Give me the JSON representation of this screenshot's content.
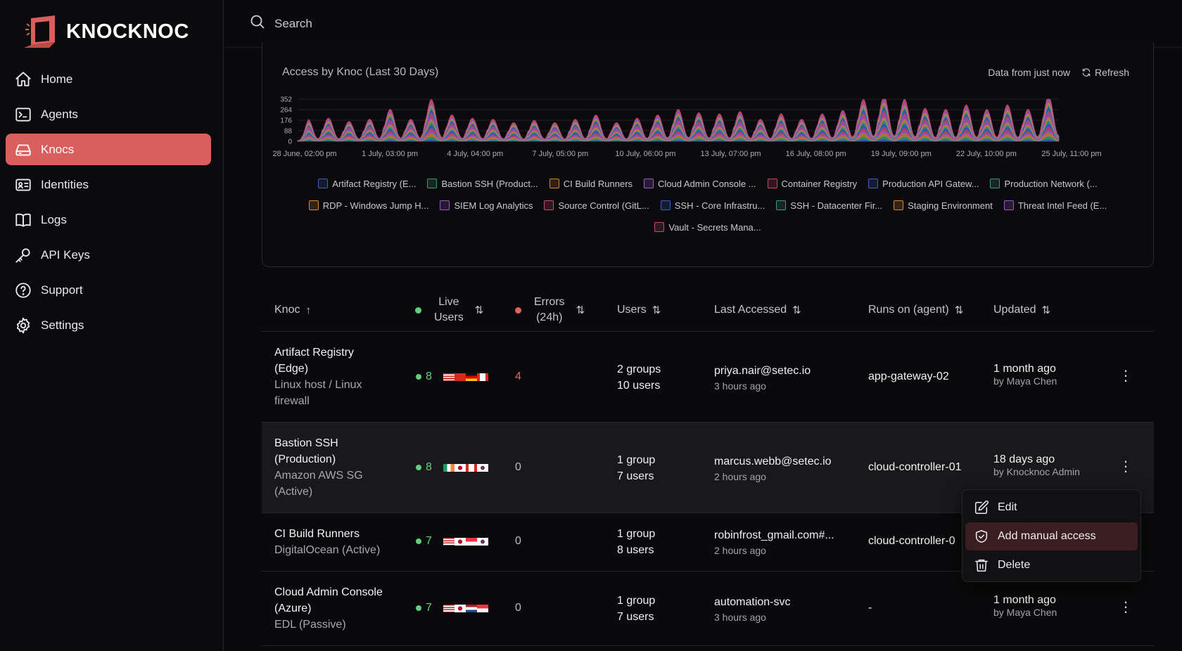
{
  "app": {
    "name": "KNOCKNOC",
    "brand_color": "#d95f5e"
  },
  "sidebar": {
    "items": [
      {
        "label": "Home",
        "icon": "home-icon"
      },
      {
        "label": "Agents",
        "icon": "terminal-icon"
      },
      {
        "label": "Knocs",
        "icon": "drive-icon",
        "active": true
      },
      {
        "label": "Identities",
        "icon": "id-card-icon"
      },
      {
        "label": "Logs",
        "icon": "book-icon"
      },
      {
        "label": "API Keys",
        "icon": "key-icon"
      },
      {
        "label": "Support",
        "icon": "help-circle-icon"
      },
      {
        "label": "Settings",
        "icon": "gear-icon"
      }
    ]
  },
  "search": {
    "placeholder": "Search"
  },
  "chart_card": {
    "title": "Access by Knoc (Last 30 Days)",
    "data_freshness": "Data from just now",
    "refresh_label": "Refresh"
  },
  "chart_data": {
    "type": "area",
    "stacked": true,
    "y_ticks": [
      0,
      88,
      176,
      264,
      352
    ],
    "ylim": [
      0,
      400
    ],
    "x_tick_labels": [
      "28 June, 02:00 pm",
      "1 July, 03:00 pm",
      "4 July, 04:00 pm",
      "7 July, 05:00 pm",
      "10 July, 06:00 pm",
      "13 July, 07:00 pm",
      "16 July, 08:00 pm",
      "19 July, 09:00 pm",
      "22 July, 10:00 pm",
      "25 July, 11:00 pm"
    ],
    "total_daily_peaks": [
      200,
      210,
      180,
      200,
      290,
      200,
      380,
      240,
      210,
      200,
      170,
      190,
      170,
      200,
      240,
      170,
      210,
      240,
      290,
      260,
      250,
      270,
      200,
      250,
      200,
      250,
      280,
      380,
      410,
      380,
      300,
      290,
      330,
      290,
      330,
      290,
      410
    ],
    "series": [
      {
        "name": "Artifact Registry (E...",
        "color": "#3f5fb8"
      },
      {
        "name": "Bastion SSH (Product...",
        "color": "#3c9a78"
      },
      {
        "name": "CI Build Runners",
        "color": "#c9843a"
      },
      {
        "name": "Cloud Admin Console ...",
        "color": "#a35bc9"
      },
      {
        "name": "Container Registry",
        "color": "#c9466b"
      },
      {
        "name": "Production API Gatew...",
        "color": "#3a62c9"
      },
      {
        "name": "Production Network (...",
        "color": "#3a9a7a"
      },
      {
        "name": "RDP - Windows Jump H...",
        "color": "#d0893c"
      },
      {
        "name": "SIEM Log Analytics",
        "color": "#9f55c9"
      },
      {
        "name": "Source Control (GitL...",
        "color": "#c84b6a"
      },
      {
        "name": "SSH - Core Infrastru...",
        "color": "#3b5fc2"
      },
      {
        "name": "SSH - Datacenter Fir...",
        "color": "#3d9c7b"
      },
      {
        "name": "Staging Environment",
        "color": "#d38b39"
      },
      {
        "name": "Threat Intel Feed (E...",
        "color": "#a15ac9"
      },
      {
        "name": "Vault - Secrets Mana...",
        "color": "#c94a6b"
      }
    ]
  },
  "table": {
    "headers": {
      "knoc": "Knoc",
      "live_users_1": "Live",
      "live_users_2": "Users",
      "errors_1": "Errors",
      "errors_2": "(24h)",
      "users": "Users",
      "last_accessed": "Last Accessed",
      "runs_on": "Runs on (agent)",
      "updated": "Updated"
    },
    "rows": [
      {
        "name_1": "Artifact Registry",
        "name_2": "(Edge)",
        "sub_1": "Linux host / Linux",
        "sub_2": "firewall",
        "live": "8",
        "flags": [
          "us",
          "ch",
          "de",
          "ca"
        ],
        "errors": "4",
        "groups": "2 groups",
        "users": "10 users",
        "last_user": "priya.nair@setec.io",
        "last_time": "3 hours ago",
        "agent": "app-gateway-02",
        "updated": "1 month ago",
        "updated_by": "by Maya Chen"
      },
      {
        "name_1": "Bastion SSH",
        "name_2": "(Production)",
        "sub_1": "Amazon AWS SG",
        "sub_2": "(Active)",
        "live": "8",
        "flags": [
          "ie",
          "jp",
          "ca",
          "kr"
        ],
        "errors": "0",
        "groups": "1 group",
        "users": "7 users",
        "last_user": "marcus.webb@setec.io",
        "last_time": "2 hours ago",
        "agent": "cloud-controller-01",
        "updated": "18 days ago",
        "updated_by": "by Knocknoc Admin"
      },
      {
        "name_1": "CI Build Runners",
        "sub_1": "DigitalOcean (Active)",
        "live": "7",
        "flags": [
          "us",
          "jp",
          "sg",
          "kr"
        ],
        "errors": "0",
        "groups": "1 group",
        "users": "8 users",
        "last_user": "robinfrost_gmail.com#...",
        "last_time": "2 hours ago",
        "agent": "cloud-controller-0"
      },
      {
        "name_1": "Cloud Admin Console",
        "name_2": "(Azure)",
        "sub_1": "EDL (Passive)",
        "live": "7",
        "flags": [
          "us",
          "jp",
          "nl",
          "sg"
        ],
        "errors": "0",
        "groups": "1 group",
        "users": "7 users",
        "last_user": "automation-svc",
        "last_time": "3 hours ago",
        "agent": "-",
        "updated": "1 month ago",
        "updated_by": "by Maya Chen"
      }
    ]
  },
  "context_menu": {
    "items": [
      {
        "label": "Edit",
        "icon": "pencil-icon"
      },
      {
        "label": "Add manual access",
        "icon": "shield-check-icon",
        "active": true
      },
      {
        "label": "Delete",
        "icon": "trash-icon"
      }
    ]
  }
}
